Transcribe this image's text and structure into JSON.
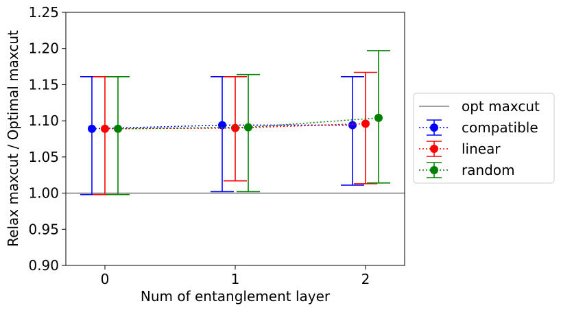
{
  "chart_data": {
    "type": "scatter",
    "title": "",
    "xlabel": "Num of entanglement layer",
    "ylabel": "Relax maxcut / Optimal maxcut",
    "xlim": [
      -0.3,
      2.3
    ],
    "ylim": [
      0.9,
      1.25
    ],
    "xticks": [
      0,
      1,
      2
    ],
    "xtick_labels": [
      "0",
      "1",
      "2"
    ],
    "yticks": [
      0.9,
      0.95,
      1.0,
      1.05,
      1.1,
      1.15,
      1.2,
      1.25
    ],
    "ytick_labels": [
      "0.90",
      "0.95",
      "1.00",
      "1.05",
      "1.10",
      "1.15",
      "1.20",
      "1.25"
    ],
    "grid": false,
    "legend_placement": "outside-right",
    "reference_line": {
      "name": "opt maxcut",
      "y": 1.0,
      "color": "#000000"
    },
    "series": [
      {
        "name": "compatible",
        "color": "#0000ff",
        "x": [
          -0.1,
          0.9,
          1.9
        ],
        "y": [
          1.089,
          1.094,
          1.094
        ],
        "yerr_low": [
          0.998,
          1.002,
          1.011
        ],
        "yerr_high": [
          1.161,
          1.161,
          1.161
        ]
      },
      {
        "name": "linear",
        "color": "#ff0000",
        "x": [
          0.0,
          1.0,
          2.0
        ],
        "y": [
          1.089,
          1.09,
          1.096
        ],
        "yerr_low": [
          0.998,
          1.017,
          1.013
        ],
        "yerr_high": [
          1.161,
          1.161,
          1.167
        ]
      },
      {
        "name": "random",
        "color": "#008000",
        "x": [
          0.1,
          1.1,
          2.1
        ],
        "y": [
          1.089,
          1.091,
          1.104
        ],
        "yerr_low": [
          0.998,
          1.002,
          1.014
        ],
        "yerr_high": [
          1.161,
          1.164,
          1.197
        ]
      }
    ]
  }
}
